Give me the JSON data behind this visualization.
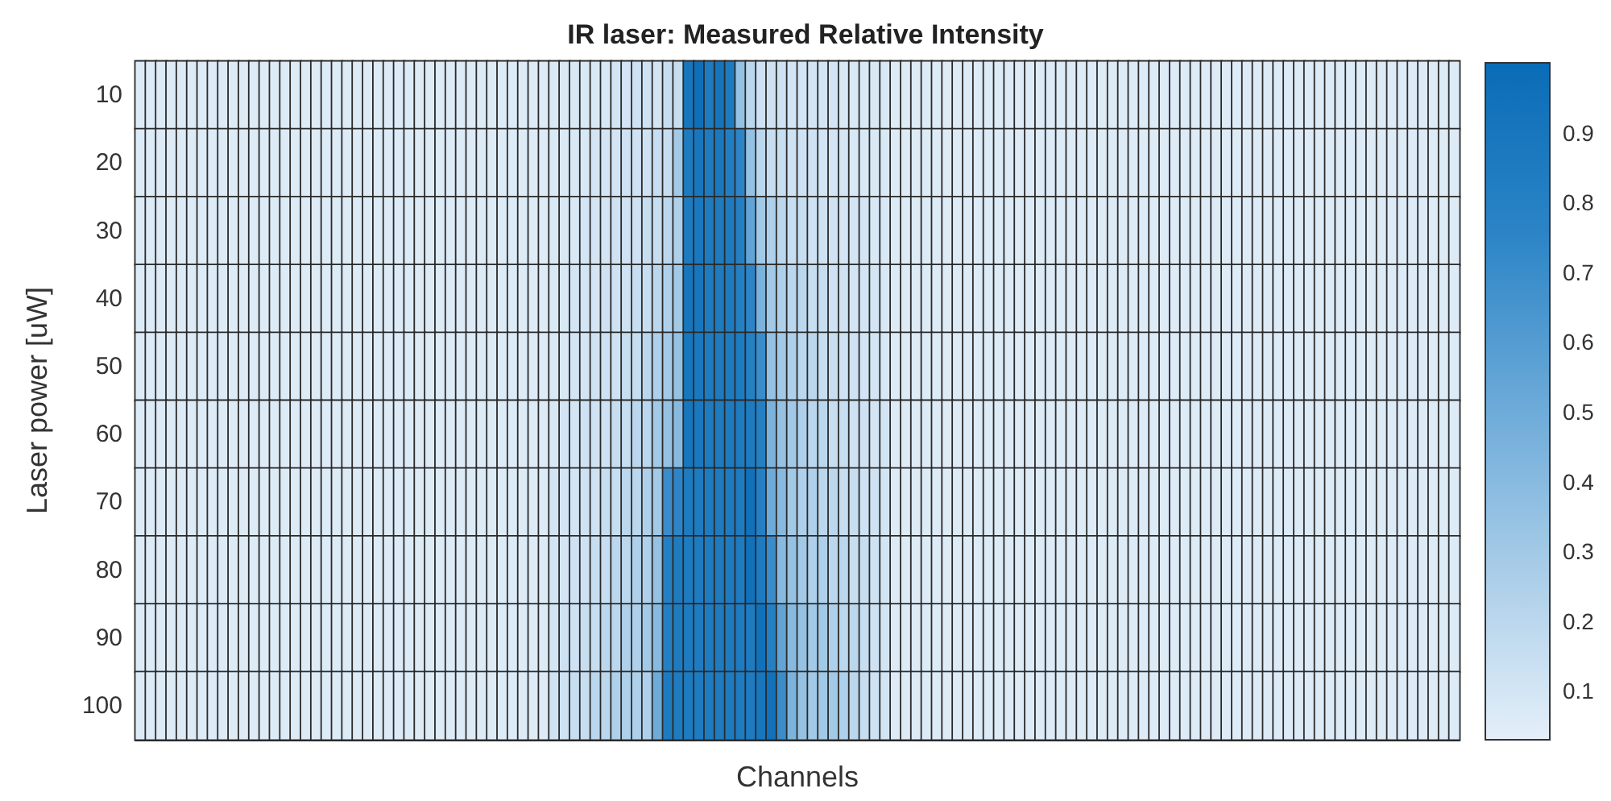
{
  "chart_data": {
    "type": "heatmap",
    "title": "IR laser: Measured Relative Intensity",
    "xlabel": "Channels",
    "ylabel": "Laser power [uW]",
    "categories": [
      null,
      null,
      null,
      null,
      null,
      null,
      null,
      null,
      null,
      null,
      null,
      null,
      null,
      null,
      null,
      null,
      null,
      null,
      null,
      null,
      null,
      null,
      null,
      null,
      null,
      null,
      null,
      null,
      null,
      null,
      null,
      null,
      null,
      null,
      null,
      null,
      null,
      null,
      null,
      null,
      null,
      null,
      null,
      null,
      null,
      null,
      null,
      null,
      null,
      null,
      null,
      null,
      null,
      null,
      null,
      null,
      null,
      null,
      null,
      null,
      null,
      null,
      null,
      null,
      null,
      null,
      null,
      null,
      null,
      null,
      null,
      null,
      null,
      null,
      null,
      null,
      null,
      null,
      null,
      null,
      null,
      null,
      null,
      null,
      null,
      null,
      null,
      null,
      null,
      null,
      null,
      null,
      null,
      null,
      null,
      null,
      null,
      null,
      null,
      null,
      null,
      null,
      null,
      null,
      null,
      null,
      null,
      null,
      null,
      null,
      null,
      null,
      null,
      null,
      null,
      null,
      null,
      null,
      null,
      null,
      null,
      null,
      null,
      null,
      null,
      null,
      null,
      null
    ],
    "y_categories": [
      "10",
      "20",
      "30",
      "40",
      "50",
      "60",
      "70",
      "80",
      "90",
      "100"
    ],
    "cells": [
      [
        0.06,
        0.06,
        0.06,
        0.06,
        0.06,
        0.06,
        0.06,
        0.06,
        0.06,
        0.06,
        0.06,
        0.06,
        0.06,
        0.06,
        0.06,
        0.06,
        0.06,
        0.06,
        0.06,
        0.06,
        0.06,
        0.06,
        0.06,
        0.06,
        0.06,
        0.06,
        0.06,
        0.06,
        0.06,
        0.06,
        0.06,
        0.06,
        0.06,
        0.06,
        0.06,
        0.06,
        0.06,
        0.06,
        0.06,
        0.06,
        0.07,
        0.07,
        0.08,
        0.08,
        0.08,
        0.08,
        0.1,
        0.1,
        0.12,
        0.12,
        0.1,
        0.15,
        0.15,
        0.9,
        0.97,
        0.85,
        0.92,
        0.85,
        0.35,
        0.2,
        0.12,
        0.12,
        0.12,
        0.1,
        0.1,
        0.1,
        0.1,
        0.1,
        0.08,
        0.08,
        0.08,
        0.08,
        0.08,
        0.06,
        0.06,
        0.06,
        0.06,
        0.06,
        0.06,
        0.06,
        0.06,
        0.06,
        0.06,
        0.06,
        0.06,
        0.06,
        0.06,
        0.06,
        0.06,
        0.06,
        0.06,
        0.06,
        0.06,
        0.06,
        0.06,
        0.06,
        0.06,
        0.06,
        0.06,
        0.06,
        0.06,
        0.06,
        0.06,
        0.06,
        0.06,
        0.06,
        0.06,
        0.06,
        0.06,
        0.06,
        0.06,
        0.06,
        0.06,
        0.06,
        0.06,
        0.06,
        0.06,
        0.06,
        0.06,
        0.06,
        0.06,
        0.06,
        0.06,
        0.06,
        0.06,
        0.06,
        0.06,
        0.06
      ],
      [
        0.06,
        0.06,
        0.06,
        0.06,
        0.06,
        0.06,
        0.06,
        0.06,
        0.06,
        0.06,
        0.06,
        0.06,
        0.06,
        0.06,
        0.06,
        0.06,
        0.06,
        0.06,
        0.06,
        0.06,
        0.06,
        0.06,
        0.06,
        0.06,
        0.06,
        0.06,
        0.06,
        0.06,
        0.06,
        0.06,
        0.06,
        0.06,
        0.06,
        0.06,
        0.06,
        0.06,
        0.06,
        0.06,
        0.06,
        0.06,
        0.07,
        0.07,
        0.08,
        0.08,
        0.1,
        0.1,
        0.1,
        0.12,
        0.12,
        0.12,
        0.15,
        0.15,
        0.3,
        0.85,
        0.9,
        0.85,
        0.88,
        0.82,
        0.75,
        0.35,
        0.2,
        0.15,
        0.15,
        0.12,
        0.12,
        0.12,
        0.1,
        0.1,
        0.1,
        0.08,
        0.08,
        0.08,
        0.08,
        0.06,
        0.06,
        0.06,
        0.06,
        0.06,
        0.06,
        0.06,
        0.06,
        0.06,
        0.06,
        0.06,
        0.06,
        0.06,
        0.06,
        0.06,
        0.06,
        0.06,
        0.06,
        0.06,
        0.06,
        0.06,
        0.06,
        0.06,
        0.06,
        0.06,
        0.06,
        0.06,
        0.06,
        0.06,
        0.06,
        0.06,
        0.06,
        0.06,
        0.06,
        0.06,
        0.06,
        0.06,
        0.06,
        0.06,
        0.06,
        0.06,
        0.06,
        0.06,
        0.06,
        0.06,
        0.06,
        0.06,
        0.06,
        0.06,
        0.06,
        0.06,
        0.06,
        0.06,
        0.06,
        0.06
      ],
      [
        0.06,
        0.06,
        0.06,
        0.06,
        0.06,
        0.06,
        0.06,
        0.06,
        0.06,
        0.06,
        0.06,
        0.06,
        0.06,
        0.06,
        0.06,
        0.06,
        0.06,
        0.06,
        0.06,
        0.06,
        0.06,
        0.06,
        0.06,
        0.06,
        0.06,
        0.06,
        0.06,
        0.06,
        0.06,
        0.06,
        0.06,
        0.06,
        0.06,
        0.06,
        0.06,
        0.06,
        0.06,
        0.06,
        0.06,
        0.06,
        0.08,
        0.08,
        0.08,
        0.1,
        0.1,
        0.1,
        0.12,
        0.12,
        0.12,
        0.15,
        0.15,
        0.2,
        0.25,
        0.85,
        0.88,
        0.85,
        0.85,
        0.85,
        0.8,
        0.55,
        0.3,
        0.25,
        0.2,
        0.15,
        0.15,
        0.12,
        0.12,
        0.12,
        0.1,
        0.1,
        0.1,
        0.08,
        0.08,
        0.06,
        0.06,
        0.06,
        0.06,
        0.06,
        0.06,
        0.06,
        0.06,
        0.06,
        0.06,
        0.06,
        0.06,
        0.06,
        0.06,
        0.06,
        0.06,
        0.06,
        0.06,
        0.06,
        0.06,
        0.06,
        0.06,
        0.06,
        0.06,
        0.06,
        0.06,
        0.06,
        0.06,
        0.06,
        0.06,
        0.06,
        0.06,
        0.06,
        0.06,
        0.06,
        0.06,
        0.06,
        0.06,
        0.06,
        0.06,
        0.06,
        0.06,
        0.06,
        0.06,
        0.06,
        0.06,
        0.06,
        0.06,
        0.06,
        0.06,
        0.06,
        0.06,
        0.06,
        0.06,
        0.06
      ],
      [
        0.06,
        0.06,
        0.06,
        0.06,
        0.06,
        0.06,
        0.06,
        0.06,
        0.06,
        0.06,
        0.06,
        0.06,
        0.06,
        0.06,
        0.06,
        0.06,
        0.06,
        0.06,
        0.06,
        0.06,
        0.06,
        0.06,
        0.06,
        0.06,
        0.06,
        0.06,
        0.06,
        0.06,
        0.06,
        0.06,
        0.06,
        0.06,
        0.06,
        0.06,
        0.06,
        0.06,
        0.06,
        0.06,
        0.06,
        0.06,
        0.08,
        0.08,
        0.1,
        0.1,
        0.1,
        0.12,
        0.12,
        0.12,
        0.15,
        0.15,
        0.2,
        0.25,
        0.3,
        0.9,
        0.9,
        0.85,
        0.85,
        0.85,
        0.8,
        0.75,
        0.45,
        0.3,
        0.25,
        0.2,
        0.2,
        0.15,
        0.15,
        0.12,
        0.12,
        0.1,
        0.1,
        0.1,
        0.08,
        0.06,
        0.06,
        0.06,
        0.06,
        0.06,
        0.06,
        0.06,
        0.06,
        0.06,
        0.06,
        0.06,
        0.06,
        0.06,
        0.06,
        0.06,
        0.06,
        0.06,
        0.06,
        0.06,
        0.06,
        0.06,
        0.06,
        0.06,
        0.06,
        0.06,
        0.06,
        0.06,
        0.06,
        0.06,
        0.06,
        0.06,
        0.06,
        0.06,
        0.06,
        0.06,
        0.06,
        0.06,
        0.06,
        0.06,
        0.06,
        0.06,
        0.06,
        0.06,
        0.06,
        0.06,
        0.06,
        0.06,
        0.06,
        0.06,
        0.06,
        0.06,
        0.06,
        0.06,
        0.06,
        0.06
      ],
      [
        0.06,
        0.06,
        0.06,
        0.06,
        0.06,
        0.06,
        0.06,
        0.06,
        0.06,
        0.06,
        0.06,
        0.06,
        0.06,
        0.06,
        0.06,
        0.06,
        0.06,
        0.06,
        0.06,
        0.06,
        0.06,
        0.06,
        0.06,
        0.06,
        0.06,
        0.06,
        0.06,
        0.06,
        0.06,
        0.06,
        0.06,
        0.06,
        0.06,
        0.06,
        0.06,
        0.06,
        0.06,
        0.06,
        0.06,
        0.06,
        0.08,
        0.08,
        0.1,
        0.1,
        0.12,
        0.12,
        0.12,
        0.15,
        0.15,
        0.2,
        0.25,
        0.3,
        0.35,
        0.9,
        0.88,
        0.85,
        0.85,
        0.85,
        0.85,
        0.8,
        0.7,
        0.35,
        0.3,
        0.25,
        0.2,
        0.2,
        0.15,
        0.15,
        0.12,
        0.12,
        0.1,
        0.1,
        0.08,
        0.06,
        0.06,
        0.06,
        0.06,
        0.06,
        0.06,
        0.06,
        0.06,
        0.06,
        0.06,
        0.06,
        0.06,
        0.06,
        0.06,
        0.06,
        0.06,
        0.06,
        0.06,
        0.06,
        0.06,
        0.06,
        0.06,
        0.06,
        0.06,
        0.06,
        0.06,
        0.06,
        0.06,
        0.06,
        0.06,
        0.06,
        0.06,
        0.06,
        0.06,
        0.06,
        0.06,
        0.06,
        0.06,
        0.06,
        0.06,
        0.06,
        0.06,
        0.06,
        0.06,
        0.06,
        0.06,
        0.06,
        0.06,
        0.06,
        0.06,
        0.06,
        0.06,
        0.06,
        0.06,
        0.06
      ],
      [
        0.06,
        0.06,
        0.06,
        0.06,
        0.06,
        0.06,
        0.06,
        0.06,
        0.06,
        0.06,
        0.06,
        0.06,
        0.06,
        0.06,
        0.06,
        0.06,
        0.06,
        0.06,
        0.06,
        0.06,
        0.06,
        0.06,
        0.06,
        0.06,
        0.06,
        0.06,
        0.06,
        0.06,
        0.06,
        0.06,
        0.06,
        0.06,
        0.06,
        0.06,
        0.06,
        0.06,
        0.06,
        0.06,
        0.06,
        0.06,
        0.08,
        0.1,
        0.1,
        0.12,
        0.12,
        0.12,
        0.15,
        0.15,
        0.2,
        0.2,
        0.3,
        0.35,
        0.4,
        0.9,
        0.88,
        0.85,
        0.85,
        0.85,
        0.85,
        0.85,
        0.8,
        0.45,
        0.35,
        0.3,
        0.25,
        0.2,
        0.2,
        0.15,
        0.15,
        0.12,
        0.12,
        0.1,
        0.1,
        0.06,
        0.06,
        0.06,
        0.06,
        0.06,
        0.06,
        0.06,
        0.06,
        0.06,
        0.06,
        0.06,
        0.06,
        0.06,
        0.06,
        0.06,
        0.06,
        0.06,
        0.06,
        0.06,
        0.06,
        0.06,
        0.06,
        0.06,
        0.06,
        0.06,
        0.06,
        0.06,
        0.06,
        0.06,
        0.06,
        0.06,
        0.06,
        0.06,
        0.06,
        0.06,
        0.06,
        0.06,
        0.06,
        0.06,
        0.06,
        0.06,
        0.06,
        0.06,
        0.06,
        0.06,
        0.06,
        0.06,
        0.06,
        0.06,
        0.06,
        0.06,
        0.06,
        0.06,
        0.06,
        0.06
      ],
      [
        0.06,
        0.06,
        0.06,
        0.06,
        0.06,
        0.06,
        0.06,
        0.06,
        0.06,
        0.06,
        0.06,
        0.06,
        0.06,
        0.06,
        0.06,
        0.06,
        0.06,
        0.06,
        0.06,
        0.06,
        0.06,
        0.06,
        0.06,
        0.06,
        0.06,
        0.06,
        0.06,
        0.06,
        0.06,
        0.06,
        0.06,
        0.06,
        0.06,
        0.06,
        0.06,
        0.06,
        0.06,
        0.06,
        0.06,
        0.06,
        0.1,
        0.1,
        0.1,
        0.12,
        0.12,
        0.15,
        0.15,
        0.2,
        0.2,
        0.25,
        0.3,
        0.7,
        0.75,
        0.85,
        0.85,
        0.85,
        0.85,
        0.85,
        0.85,
        0.95,
        0.8,
        0.5,
        0.4,
        0.3,
        0.25,
        0.25,
        0.2,
        0.2,
        0.15,
        0.15,
        0.12,
        0.12,
        0.1,
        0.06,
        0.06,
        0.06,
        0.06,
        0.06,
        0.06,
        0.06,
        0.06,
        0.06,
        0.06,
        0.06,
        0.06,
        0.06,
        0.06,
        0.06,
        0.06,
        0.06,
        0.06,
        0.06,
        0.06,
        0.06,
        0.06,
        0.06,
        0.06,
        0.06,
        0.06,
        0.06,
        0.06,
        0.06,
        0.06,
        0.06,
        0.06,
        0.06,
        0.06,
        0.06,
        0.06,
        0.06,
        0.06,
        0.06,
        0.06,
        0.06,
        0.06,
        0.06,
        0.06,
        0.06,
        0.06,
        0.06,
        0.06,
        0.06,
        0.06,
        0.06,
        0.06,
        0.06,
        0.06,
        0.06
      ],
      [
        0.06,
        0.06,
        0.06,
        0.06,
        0.06,
        0.06,
        0.06,
        0.06,
        0.06,
        0.06,
        0.06,
        0.06,
        0.06,
        0.06,
        0.06,
        0.06,
        0.06,
        0.06,
        0.06,
        0.06,
        0.06,
        0.06,
        0.06,
        0.06,
        0.06,
        0.06,
        0.06,
        0.06,
        0.06,
        0.06,
        0.06,
        0.06,
        0.06,
        0.06,
        0.06,
        0.06,
        0.06,
        0.06,
        0.06,
        0.06,
        0.1,
        0.1,
        0.12,
        0.12,
        0.15,
        0.15,
        0.2,
        0.2,
        0.25,
        0.25,
        0.35,
        0.8,
        0.85,
        0.85,
        0.85,
        0.85,
        0.85,
        0.85,
        0.85,
        0.95,
        0.85,
        0.7,
        0.4,
        0.35,
        0.3,
        0.25,
        0.25,
        0.2,
        0.2,
        0.15,
        0.15,
        0.12,
        0.1,
        0.06,
        0.06,
        0.06,
        0.06,
        0.06,
        0.06,
        0.06,
        0.06,
        0.06,
        0.06,
        0.06,
        0.06,
        0.06,
        0.06,
        0.06,
        0.06,
        0.06,
        0.06,
        0.06,
        0.06,
        0.06,
        0.06,
        0.06,
        0.06,
        0.06,
        0.06,
        0.06,
        0.06,
        0.06,
        0.06,
        0.06,
        0.06,
        0.06,
        0.06,
        0.06,
        0.06,
        0.06,
        0.06,
        0.06,
        0.06,
        0.06,
        0.06,
        0.06,
        0.06,
        0.06,
        0.06,
        0.06,
        0.06,
        0.06,
        0.06,
        0.06,
        0.06,
        0.06,
        0.06,
        0.06
      ],
      [
        0.06,
        0.06,
        0.06,
        0.06,
        0.06,
        0.06,
        0.06,
        0.06,
        0.06,
        0.06,
        0.06,
        0.06,
        0.06,
        0.06,
        0.06,
        0.06,
        0.06,
        0.06,
        0.06,
        0.06,
        0.06,
        0.06,
        0.06,
        0.06,
        0.06,
        0.06,
        0.06,
        0.06,
        0.06,
        0.06,
        0.06,
        0.06,
        0.06,
        0.06,
        0.06,
        0.06,
        0.06,
        0.06,
        0.06,
        0.06,
        0.1,
        0.12,
        0.12,
        0.15,
        0.15,
        0.2,
        0.2,
        0.25,
        0.25,
        0.3,
        0.4,
        0.8,
        0.85,
        0.85,
        0.85,
        0.85,
        0.85,
        0.85,
        0.85,
        0.85,
        0.95,
        0.8,
        0.55,
        0.4,
        0.35,
        0.3,
        0.3,
        0.25,
        0.2,
        0.2,
        0.15,
        0.12,
        0.1,
        0.06,
        0.06,
        0.06,
        0.06,
        0.06,
        0.06,
        0.06,
        0.06,
        0.06,
        0.06,
        0.06,
        0.06,
        0.06,
        0.06,
        0.06,
        0.06,
        0.06,
        0.06,
        0.06,
        0.06,
        0.06,
        0.06,
        0.06,
        0.06,
        0.06,
        0.06,
        0.06,
        0.06,
        0.06,
        0.06,
        0.06,
        0.06,
        0.06,
        0.06,
        0.06,
        0.06,
        0.06,
        0.06,
        0.06,
        0.06,
        0.06,
        0.06,
        0.06,
        0.06,
        0.06,
        0.06,
        0.06,
        0.06,
        0.06,
        0.06,
        0.06,
        0.06,
        0.06,
        0.06,
        0.06
      ],
      [
        0.06,
        0.06,
        0.06,
        0.06,
        0.06,
        0.06,
        0.06,
        0.06,
        0.06,
        0.06,
        0.06,
        0.06,
        0.06,
        0.06,
        0.06,
        0.06,
        0.06,
        0.06,
        0.06,
        0.06,
        0.06,
        0.06,
        0.06,
        0.06,
        0.06,
        0.06,
        0.06,
        0.06,
        0.06,
        0.06,
        0.06,
        0.06,
        0.06,
        0.06,
        0.06,
        0.06,
        0.06,
        0.06,
        0.06,
        0.06,
        0.12,
        0.12,
        0.15,
        0.15,
        0.2,
        0.2,
        0.25,
        0.25,
        0.25,
        0.25,
        0.5,
        0.85,
        0.85,
        0.85,
        0.85,
        0.85,
        0.85,
        0.85,
        0.85,
        0.85,
        0.9,
        0.95,
        0.7,
        0.45,
        0.35,
        0.3,
        0.3,
        0.3,
        0.25,
        0.2,
        0.15,
        0.12,
        0.1,
        0.06,
        0.06,
        0.06,
        0.06,
        0.06,
        0.06,
        0.06,
        0.06,
        0.06,
        0.06,
        0.06,
        0.06,
        0.06,
        0.06,
        0.06,
        0.06,
        0.06,
        0.06,
        0.06,
        0.06,
        0.06,
        0.06,
        0.06,
        0.06,
        0.06,
        0.06,
        0.06,
        0.06,
        0.06,
        0.06,
        0.06,
        0.06,
        0.06,
        0.06,
        0.06,
        0.06,
        0.06,
        0.06,
        0.06,
        0.06,
        0.06,
        0.06,
        0.06,
        0.06,
        0.06,
        0.06,
        0.06,
        0.06,
        0.06,
        0.06,
        0.06,
        0.06,
        0.06,
        0.06,
        0.06
      ]
    ],
    "clim": [
      0.03,
      1
    ],
    "cticks": [
      0.1,
      0.2,
      0.3,
      0.4,
      0.5,
      0.6,
      0.7,
      0.8,
      0.9
    ]
  }
}
